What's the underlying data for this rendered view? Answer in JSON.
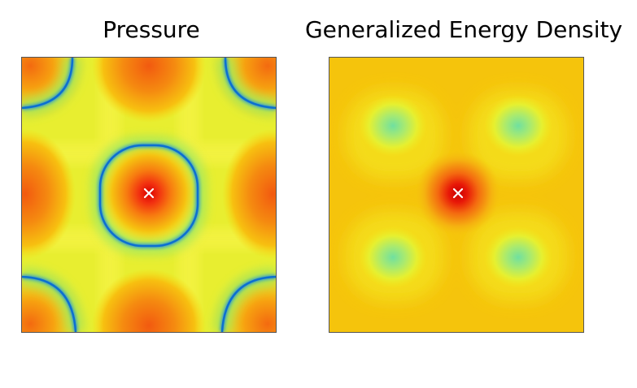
{
  "panels": [
    {
      "title": "Pressure",
      "map": "field-heatmap",
      "marker": "x-marker"
    },
    {
      "title": "Generalized Energy Density",
      "map": "field-heatmap",
      "marker": "x-marker"
    }
  ],
  "colors": {
    "background": "#ffffff",
    "high": "#d40000",
    "mid_high": "#f26a10",
    "mid": "#f5c400",
    "low_mid": "#f0f020",
    "low": "#1590e0",
    "lowest": "#70e0a0",
    "marker": "#ffffff",
    "frame": "#555555"
  }
}
